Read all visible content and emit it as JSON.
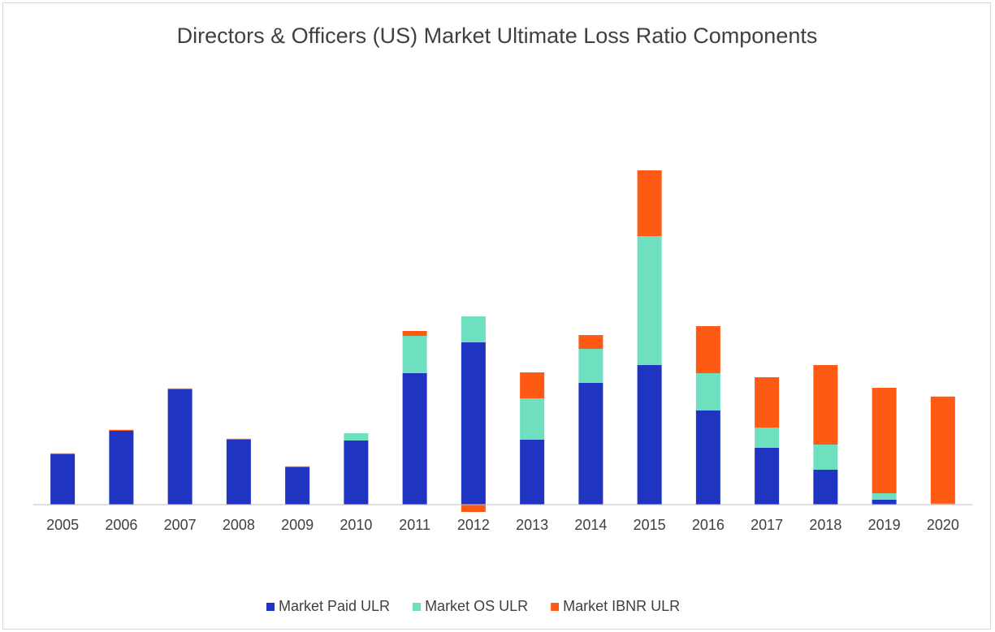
{
  "chart_data": {
    "type": "stacked_bar",
    "title": "Directors & Officers (US) Market Ultimate Loss Ratio Components",
    "categories": [
      "2005",
      "2006",
      "2007",
      "2008",
      "2009",
      "2010",
      "2011",
      "2012",
      "2013",
      "2014",
      "2015",
      "2016",
      "2017",
      "2018",
      "2019",
      "2020"
    ],
    "series": [
      {
        "name": "Market Paid ULR",
        "color": "#1f35c1",
        "values": [
          15.5,
          22.75,
          35.5,
          20,
          11.5,
          19.75,
          40.5,
          50,
          20,
          37.5,
          43,
          29,
          17.5,
          10.75,
          1.5,
          0
        ]
      },
      {
        "name": "Market OS ULR",
        "color": "#6ee0c0",
        "values": [
          0,
          0,
          0,
          0,
          0,
          2.25,
          11.5,
          8,
          12.75,
          10.5,
          39.75,
          11.5,
          6.25,
          7.75,
          2,
          0.3
        ]
      },
      {
        "name": "Market IBNR ULR",
        "color": "#ff5a14",
        "values": [
          0.3,
          0.3,
          0.3,
          0.3,
          0.3,
          0,
          1.5,
          -2.25,
          8,
          4.25,
          20.25,
          14.5,
          15.5,
          24.5,
          32.5,
          33
        ]
      }
    ],
    "ylim": [
      -5,
      125
    ],
    "legend": "bottom"
  }
}
